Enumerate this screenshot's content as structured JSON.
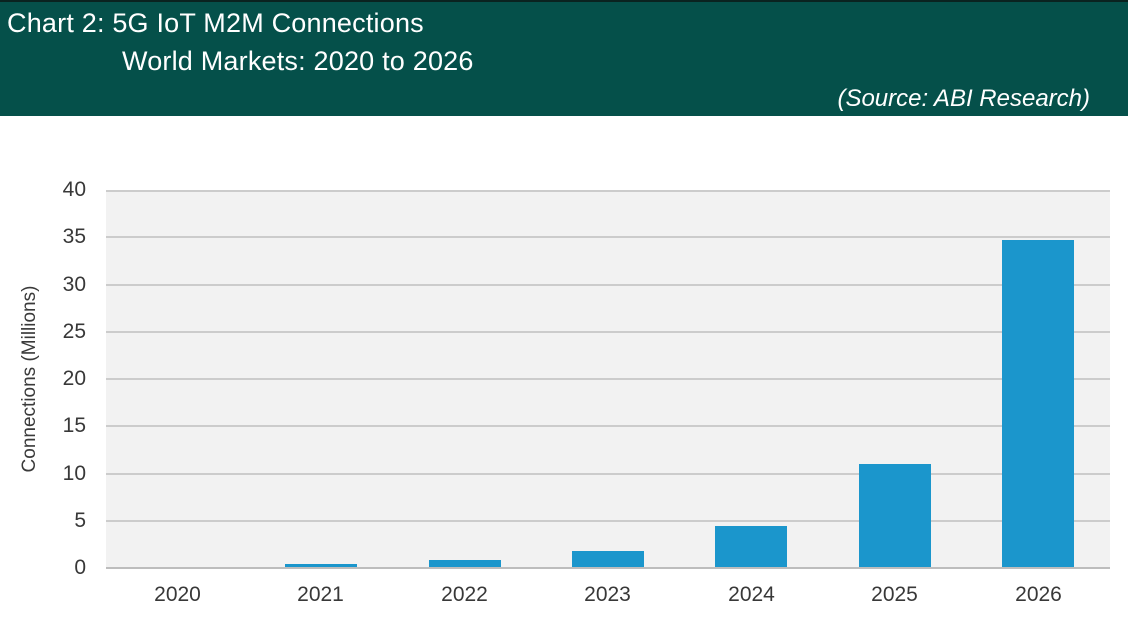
{
  "header": {
    "title_line1": "Chart 2: 5G IoT M2M Connections",
    "title_line2": "World Markets: 2020 to 2026",
    "source": "(Source: ABI Research)",
    "background_color": "#05504a",
    "text_color": "#ffffff"
  },
  "chart_data": {
    "type": "bar",
    "title": "Chart 2: 5G IoT M2M Connections — World Markets: 2020 to 2026",
    "categories": [
      "2020",
      "2021",
      "2022",
      "2023",
      "2024",
      "2025",
      "2026"
    ],
    "values": [
      0.1,
      0.4,
      0.8,
      1.8,
      4.4,
      11.0,
      34.7
    ],
    "xlabel": "",
    "ylabel": "Connections (Millions)",
    "ylim": [
      0,
      40
    ],
    "yticks": [
      0,
      5,
      10,
      15,
      20,
      25,
      30,
      35,
      40
    ],
    "grid": true,
    "legend": false,
    "bar_color": "#1b96cc",
    "plot_background": "#f2f2f2",
    "gridline_color": "#cccccc",
    "tick_label_color": "#383838"
  }
}
